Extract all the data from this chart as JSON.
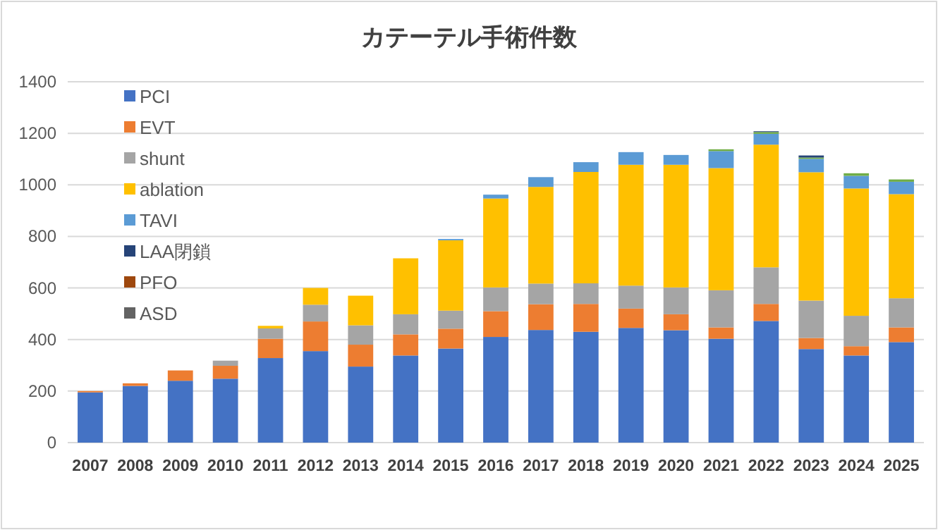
{
  "chart_data": {
    "type": "bar",
    "title": "カテーテル手術件数",
    "stacked": true,
    "grid": "y",
    "legend": "top left",
    "categories": [
      "2007",
      "2008",
      "2009",
      "2010",
      "2011",
      "2012",
      "2013",
      "2014",
      "2015",
      "2016",
      "2017",
      "2018",
      "2019",
      "2020",
      "2021",
      "2022",
      "2023",
      "2024",
      "2025"
    ],
    "ylim": [
      0,
      1400
    ],
    "yticks": [
      0,
      200,
      400,
      600,
      800,
      1000,
      1200,
      1400
    ],
    "series": [
      {
        "name": "PCI",
        "color": "#4472c4",
        "values": [
          195,
          220,
          240,
          248,
          328,
          355,
          295,
          338,
          365,
          410,
          437,
          430,
          445,
          436,
          403,
          472,
          363,
          338,
          390
        ]
      },
      {
        "name": "EVT",
        "color": "#ed7d31",
        "values": [
          5,
          10,
          40,
          50,
          75,
          115,
          85,
          82,
          77,
          100,
          100,
          108,
          75,
          62,
          44,
          66,
          43,
          36,
          57
        ]
      },
      {
        "name": "shunt",
        "color": "#a5a5a5",
        "values": [
          null,
          null,
          null,
          20,
          40,
          65,
          75,
          78,
          70,
          92,
          80,
          80,
          89,
          104,
          144,
          142,
          145,
          118,
          113
        ]
      },
      {
        "name": "ablation",
        "color": "#ffc000",
        "values": [
          null,
          null,
          null,
          null,
          10,
          65,
          115,
          217,
          273,
          345,
          375,
          432,
          469,
          476,
          474,
          476,
          498,
          494,
          404
        ]
      },
      {
        "name": "TAVI",
        "color": "#5b9bd5",
        "values": [
          null,
          null,
          null,
          null,
          null,
          null,
          null,
          null,
          5,
          15,
          38,
          38,
          49,
          38,
          66,
          42,
          52,
          49,
          48
        ]
      },
      {
        "color": "#70ad47",
        "values": [
          null,
          null,
          null,
          null,
          null,
          null,
          null,
          null,
          null,
          null,
          null,
          null,
          null,
          null,
          7,
          7,
          5,
          10,
          9
        ]
      },
      {
        "name": "LAA閉鎖",
        "color": "#264478",
        "values": [
          null,
          null,
          null,
          null,
          null,
          null,
          null,
          null,
          null,
          null,
          null,
          null,
          null,
          null,
          null,
          3,
          8,
          null,
          null
        ]
      },
      {
        "name": "PFO",
        "color": "#9e480e",
        "values": [
          null,
          null,
          null,
          null,
          null,
          null,
          null,
          null,
          null,
          null,
          null,
          null,
          null,
          null,
          null,
          null,
          null,
          null,
          null
        ]
      },
      {
        "name": "ASD",
        "color": "#636363",
        "values": [
          null,
          null,
          null,
          null,
          null,
          null,
          null,
          null,
          null,
          null,
          null,
          null,
          null,
          null,
          null,
          null,
          null,
          null,
          null
        ]
      }
    ]
  }
}
